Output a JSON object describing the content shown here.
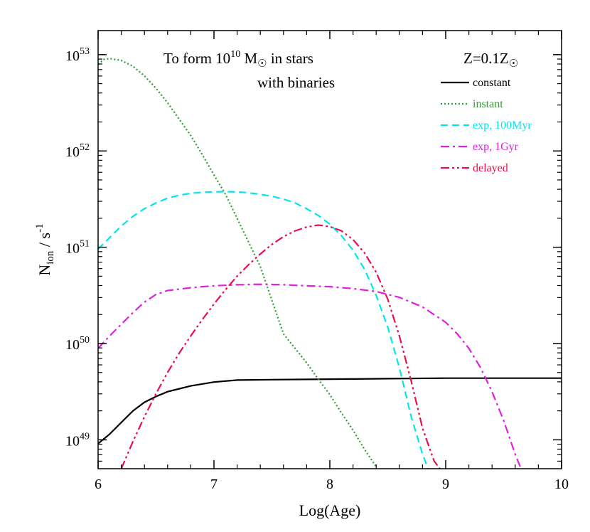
{
  "chart_data": {
    "type": "line",
    "title": "",
    "xlabel": "Log(Age)",
    "ylabel": "N_ion / s^-1",
    "ylabel_parts": {
      "base": "N",
      "sub": "ion",
      "slash": " / s",
      "sup": "-1"
    },
    "xlim": [
      6,
      10
    ],
    "ylim_log10": [
      48.7,
      53.25
    ],
    "y_scale": "log",
    "grid": false,
    "legend_position": "top-right",
    "x_ticks": [
      6,
      7,
      8,
      9,
      10
    ],
    "x_tick_labels": [
      "6",
      "7",
      "8",
      "9",
      "10"
    ],
    "y_ticks_log10": [
      49,
      50,
      51,
      52,
      53
    ],
    "y_tick_labels": [
      {
        "base": "10",
        "exp": "49"
      },
      {
        "base": "10",
        "exp": "50"
      },
      {
        "base": "10",
        "exp": "51"
      },
      {
        "base": "10",
        "exp": "52"
      },
      {
        "base": "10",
        "exp": "53"
      }
    ],
    "annotations": {
      "line1_prefix": "To form 10",
      "line1_exp": "10",
      "line1_unit": " M",
      "line1_unit_sub": "☉",
      "line1_suffix": " in stars",
      "line2": "with binaries",
      "metallicity_prefix": "Z=0.1Z",
      "metallicity_sub": "☉"
    },
    "series": [
      {
        "name": "constant",
        "color": "#000000",
        "dash": "solid",
        "x": [
          6.0,
          6.1,
          6.2,
          6.3,
          6.4,
          6.5,
          6.6,
          6.8,
          7.0,
          7.2,
          7.5,
          8.0,
          8.5,
          9.0,
          9.5,
          10.0
        ],
        "log_y": [
          48.96,
          49.06,
          49.18,
          49.3,
          49.39,
          49.45,
          49.5,
          49.56,
          49.6,
          49.62,
          49.625,
          49.63,
          49.635,
          49.64,
          49.64,
          49.64
        ]
      },
      {
        "name": "instant",
        "color": "#2ca02c",
        "dash": "dotted",
        "x": [
          6.0,
          6.05,
          6.1,
          6.2,
          6.3,
          6.4,
          6.5,
          6.6,
          6.7,
          6.8,
          6.9,
          7.0,
          7.1,
          7.2,
          7.3,
          7.4,
          7.5,
          7.6,
          7.7,
          7.8,
          7.9,
          8.0,
          8.1,
          8.2,
          8.3,
          8.4
        ],
        "log_y": [
          52.9,
          52.95,
          52.96,
          52.94,
          52.88,
          52.78,
          52.65,
          52.5,
          52.33,
          52.16,
          51.96,
          51.75,
          51.55,
          51.3,
          51.05,
          50.8,
          50.45,
          50.1,
          49.95,
          49.8,
          49.63,
          49.47,
          49.28,
          49.1,
          48.9,
          48.72
        ]
      },
      {
        "name": "exp, 100Myr",
        "color": "#00e5ee",
        "dash": "dashed",
        "x": [
          6.0,
          6.1,
          6.2,
          6.3,
          6.4,
          6.5,
          6.6,
          6.7,
          6.8,
          6.9,
          7.0,
          7.1,
          7.2,
          7.3,
          7.4,
          7.5,
          7.6,
          7.7,
          7.8,
          7.9,
          8.0,
          8.1,
          8.2,
          8.3,
          8.4,
          8.5,
          8.6,
          8.7,
          8.8,
          8.85
        ],
        "log_y": [
          50.98,
          51.1,
          51.22,
          51.32,
          51.4,
          51.46,
          51.51,
          51.54,
          51.56,
          51.57,
          51.575,
          51.578,
          51.575,
          51.565,
          51.55,
          51.53,
          51.5,
          51.46,
          51.4,
          51.33,
          51.24,
          51.12,
          50.97,
          50.77,
          50.5,
          50.17,
          49.75,
          49.25,
          48.85,
          48.7
        ]
      },
      {
        "name": "exp, 1Gyr",
        "color": "#e020e0",
        "dash": "dashdot",
        "x": [
          6.0,
          6.1,
          6.2,
          6.3,
          6.4,
          6.5,
          6.6,
          6.8,
          7.0,
          7.2,
          7.4,
          7.6,
          7.8,
          8.0,
          8.2,
          8.4,
          8.6,
          8.8,
          9.0,
          9.1,
          9.2,
          9.3,
          9.4,
          9.5,
          9.6,
          9.65
        ],
        "log_y": [
          49.95,
          50.08,
          50.2,
          50.32,
          50.43,
          50.51,
          50.55,
          50.58,
          50.6,
          50.61,
          50.615,
          50.61,
          50.6,
          50.59,
          50.57,
          50.54,
          50.48,
          50.38,
          50.22,
          50.1,
          49.95,
          49.75,
          49.5,
          49.2,
          48.85,
          48.7
        ]
      },
      {
        "name": "delayed",
        "color": "#e8104a",
        "dash": "dashdotdot",
        "x": [
          6.2,
          6.3,
          6.4,
          6.5,
          6.6,
          6.7,
          6.8,
          6.9,
          7.0,
          7.1,
          7.2,
          7.3,
          7.4,
          7.5,
          7.6,
          7.7,
          7.8,
          7.9,
          8.0,
          8.1,
          8.2,
          8.3,
          8.4,
          8.5,
          8.6,
          8.7,
          8.8,
          8.9,
          8.95
        ],
        "log_y": [
          48.7,
          48.98,
          49.24,
          49.48,
          49.7,
          49.9,
          50.08,
          50.25,
          50.41,
          50.56,
          50.7,
          50.82,
          50.93,
          51.03,
          51.11,
          51.17,
          51.21,
          51.23,
          51.215,
          51.17,
          51.08,
          50.94,
          50.74,
          50.46,
          50.08,
          49.62,
          49.12,
          48.78,
          48.7
        ]
      }
    ]
  }
}
